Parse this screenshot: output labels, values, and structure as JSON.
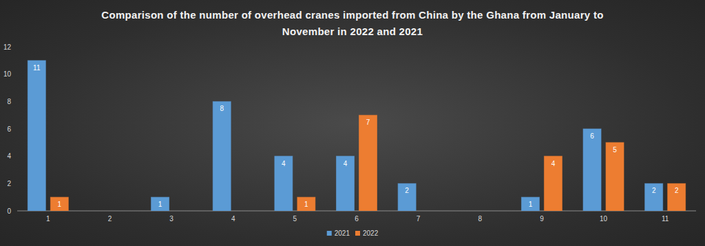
{
  "chart_data": {
    "type": "bar",
    "title": "Comparison of the number of overhead cranes imported from China by the Ghana from January to November in 2022 and 2021",
    "categories": [
      "1",
      "2",
      "3",
      "4",
      "5",
      "6",
      "7",
      "8",
      "9",
      "10",
      "11"
    ],
    "series": [
      {
        "name": "2021",
        "color": "#5b9bd5",
        "values": [
          11,
          null,
          1,
          8,
          4,
          4,
          2,
          null,
          1,
          6,
          2
        ]
      },
      {
        "name": "2022",
        "color": "#ed7d31",
        "values": [
          1,
          null,
          null,
          null,
          1,
          7,
          null,
          null,
          4,
          5,
          2
        ]
      }
    ],
    "ylim": [
      0,
      12
    ],
    "yticks": [
      0,
      2,
      4,
      6,
      8,
      10,
      12
    ],
    "grid": false,
    "legend": "bottom",
    "data_labels": true
  }
}
